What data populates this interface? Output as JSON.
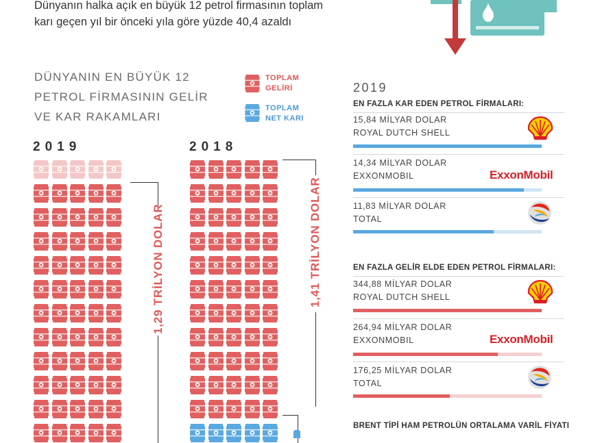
{
  "headline": {
    "line1": "Dünyanın halka açık en büyük 12 petrol firmasının toplam",
    "line2": "karı geçen yıl bir önceki yıla göre yüzde 40,4 azaldı"
  },
  "title": {
    "line1": "DÜNYANIN EN BÜYÜK 12",
    "line2": "PETROL FİRMASININ GELİR",
    "line3": "VE KAR RAKAMLARI"
  },
  "legend": {
    "revenue": {
      "line1": "TOPLAM",
      "line2": "GELİRİ",
      "color": "#e06060"
    },
    "profit": {
      "line1": "TOPLAM",
      "line2": "NET KARI",
      "color": "#5aa8e0"
    }
  },
  "left_chart": {
    "y2019": {
      "year": "2019",
      "label": "1,29 TRİLYON DOLAR"
    },
    "y2018": {
      "year": "2018",
      "label": "1,41 TRİLYON DOLAR"
    }
  },
  "right_panel": {
    "year": "2019",
    "profit_header": "EN FAZLA KAR EDEN PETROL FİRMALARI:",
    "profit": [
      {
        "amount": "15,84 MİLYAR DOLAR",
        "company": "ROYAL DUTCH SHELL",
        "logo": "shell-logo-icon",
        "value": 15.84
      },
      {
        "amount": "14,34 MİLYAR DOLAR",
        "company": "EXXONMOBIL",
        "logo": "exxonmobil-logo",
        "value": 14.34
      },
      {
        "amount": "11,83 MİLYAR DOLAR",
        "company": "TOTAL",
        "logo": "total-logo-icon",
        "value": 11.83
      }
    ],
    "revenue_header": "EN FAZLA GELİR ELDE EDEN PETROL FİRMALARI:",
    "revenue": [
      {
        "amount": "344,88 MİLYAR DOLAR",
        "company": "ROYAL DUTCH SHELL",
        "logo": "shell-logo-icon",
        "value": 344.88
      },
      {
        "amount": "264,94 MİLYAR DOLAR",
        "company": "EXXONMOBIL",
        "logo": "exxonmobil-logo",
        "value": 264.94
      },
      {
        "amount": "176,25 MİLYAR DOLAR",
        "company": "TOTAL",
        "logo": "total-logo-icon",
        "value": 176.25
      }
    ],
    "brent_header": "BRENT TİPİ HAM PETROLÜN ORTALAMA VARİL FİYATI",
    "logo_text": {
      "exxon": "ExxonMobil"
    },
    "colors": {
      "profit_fill": "#5aa8e0",
      "profit_track": "#cfe5f6",
      "revenue_fill": "#e06060",
      "revenue_track": "#f6cfcf"
    }
  }
}
